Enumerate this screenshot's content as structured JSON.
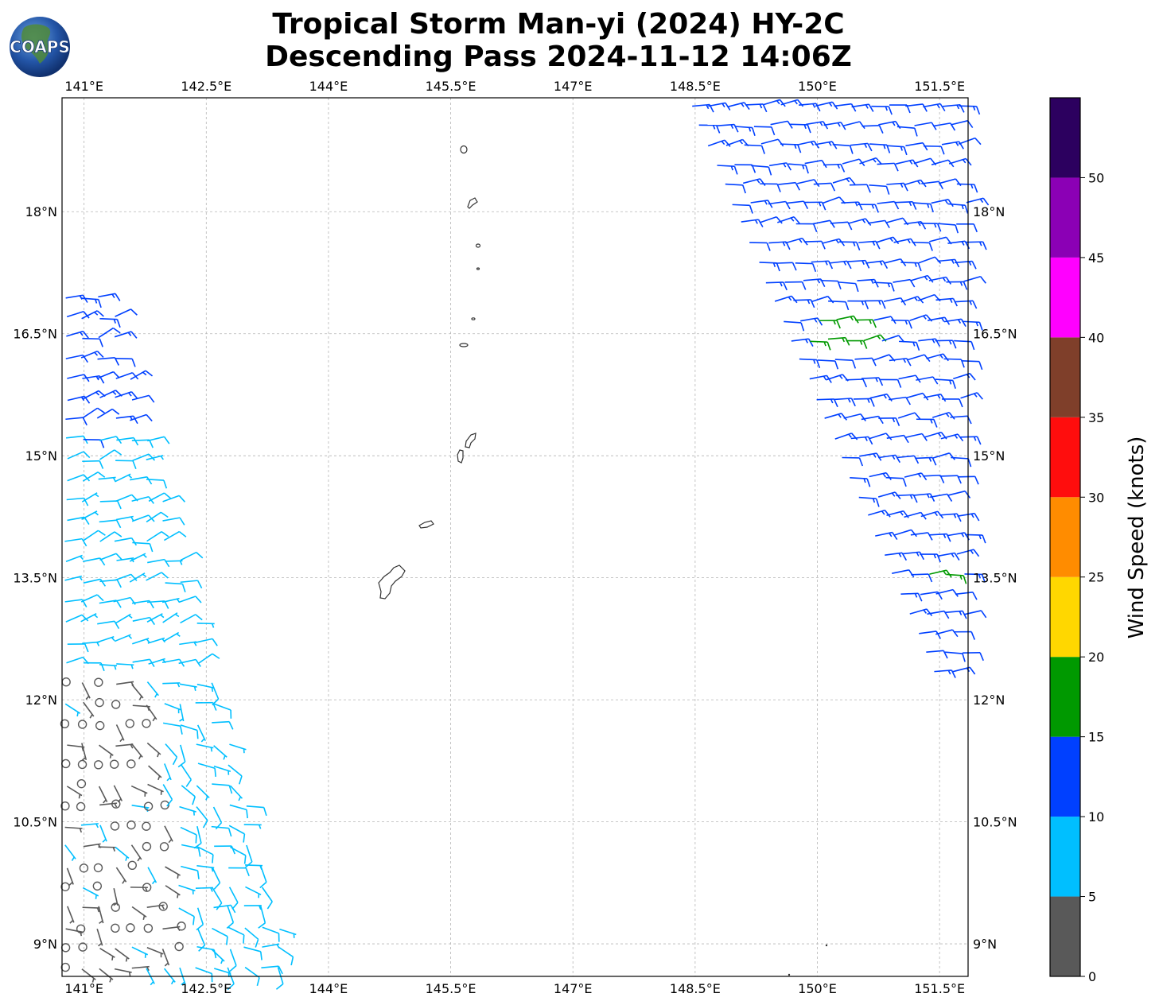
{
  "title_line1": "Tropical Storm Man-yi (2024) HY-2C",
  "title_line2": "Descending Pass 2024-11-12 14:06Z",
  "logo_text": "COAPS",
  "map": {
    "lon_ticks": [
      "141°E",
      "142.5°E",
      "144°E",
      "145.5°E",
      "147°E",
      "148.5°E",
      "150°E",
      "151.5°E"
    ],
    "lon_values": [
      141,
      142.5,
      144,
      145.5,
      147,
      148.5,
      150,
      151.5
    ],
    "lat_ticks": [
      "18°N",
      "16.5°N",
      "15°N",
      "13.5°N",
      "12°N",
      "10.5°N",
      "9°N"
    ],
    "lat_values": [
      18,
      16.5,
      15,
      13.5,
      12,
      10.5,
      9
    ],
    "lon_range": [
      140.73,
      151.85
    ],
    "lat_range": [
      8.6,
      19.4
    ],
    "grid": true,
    "land_color": "#ffffff",
    "coast_color": "#333333"
  },
  "colorbar": {
    "label": "Wind Speed (knots)",
    "tick_labels": [
      "0",
      "5",
      "10",
      "15",
      "20",
      "25",
      "30",
      "35",
      "40",
      "45",
      "50"
    ],
    "bins": [
      0,
      5,
      10,
      15,
      20,
      25,
      30,
      35,
      40,
      45,
      50,
      55
    ],
    "colors": [
      "#595959",
      "#00bfff",
      "#0040ff",
      "#009900",
      "#ffd700",
      "#ff8c00",
      "#ff0d0d",
      "#7f3f2a",
      "#ff00ff",
      "#8b00b5",
      "#2c005f"
    ]
  },
  "chart_data": {
    "type": "scatter",
    "title": "Tropical Storm Man-yi (2024) HY-2C Descending Pass 2024-11-12 14:06Z",
    "xlabel": "",
    "ylabel": "",
    "value_label": "Wind Speed (knots)",
    "swaths": [
      {
        "side": "west",
        "lon_range": [
          140.73,
          143.6
        ],
        "lat_range": [
          8.6,
          17.1
        ],
        "speed_knots_range": [
          0,
          14
        ]
      },
      {
        "side": "east",
        "lon_range": [
          148.4,
          151.85
        ],
        "lat_range": [
          12.1,
          19.4
        ],
        "speed_knots_range": [
          10,
          17
        ]
      }
    ]
  }
}
